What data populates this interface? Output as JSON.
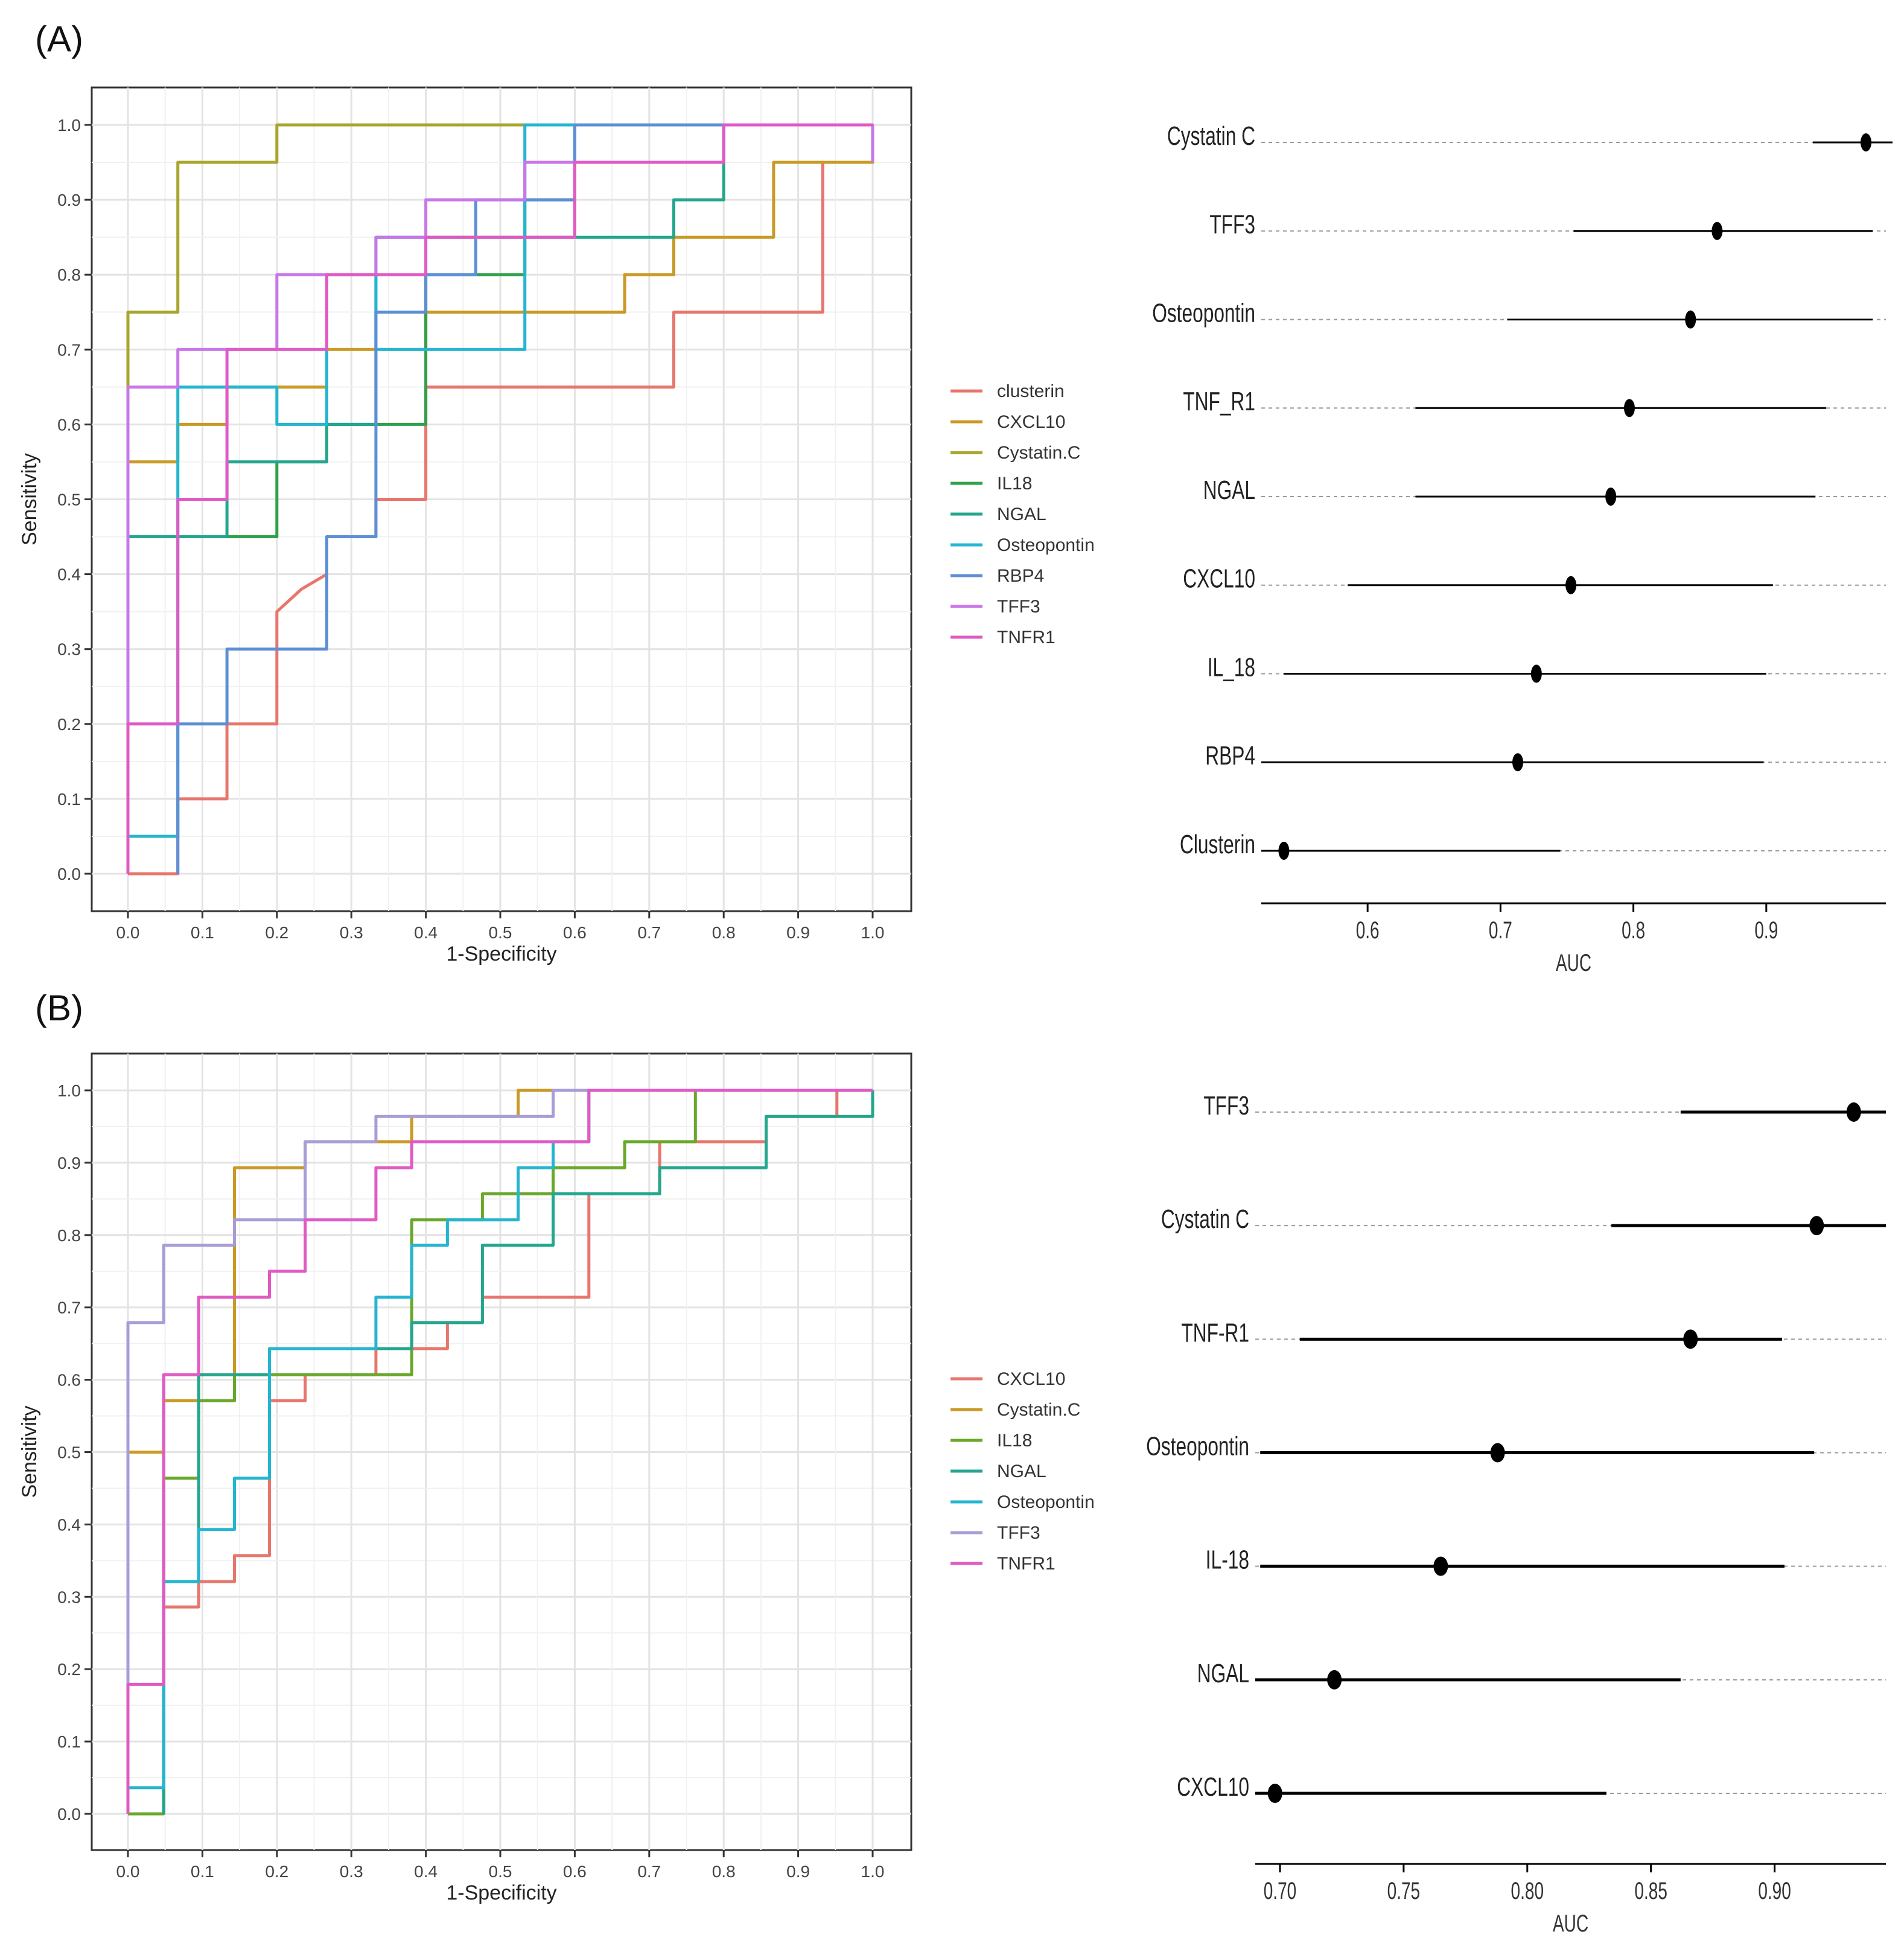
{
  "panels": [
    {
      "label": "(A)"
    },
    {
      "label": "(B)"
    }
  ],
  "chart_data": [
    {
      "type": "line",
      "panel": "(A)",
      "chart": "roc",
      "xlabel": "1-Specificity",
      "ylabel": "Sensitivity",
      "xlim": [
        0,
        1
      ],
      "ylim": [
        0,
        1
      ],
      "grid": true,
      "legend": "right",
      "ticks": [
        "0.0",
        "0.1",
        "0.2",
        "0.3",
        "0.4",
        "0.5",
        "0.6",
        "0.7",
        "0.8",
        "0.9",
        "1.0"
      ],
      "series": [
        {
          "name": "clusterin",
          "color": "#e7766d",
          "x": [
            0,
            0.067,
            0.067,
            0.133,
            0.133,
            0.2,
            0.2,
            0.233,
            0.267,
            0.267,
            0.333,
            0.333,
            0.4,
            0.4,
            0.733,
            0.733,
            0.933,
            0.933,
            1,
            1
          ],
          "y": [
            0,
            0,
            0.1,
            0.1,
            0.2,
            0.2,
            0.35,
            0.38,
            0.4,
            0.45,
            0.45,
            0.5,
            0.5,
            0.65,
            0.65,
            0.75,
            0.75,
            0.95,
            0.95,
            1
          ]
        },
        {
          "name": "CXCL10",
          "color": "#c99a25",
          "x": [
            0,
            0,
            0.067,
            0.067,
            0.133,
            0.133,
            0.267,
            0.267,
            0.4,
            0.4,
            0.667,
            0.667,
            0.733,
            0.733,
            0.867,
            0.867,
            1,
            1
          ],
          "y": [
            0,
            0.55,
            0.55,
            0.6,
            0.6,
            0.65,
            0.65,
            0.7,
            0.7,
            0.75,
            0.75,
            0.8,
            0.8,
            0.85,
            0.85,
            0.95,
            0.95,
            1
          ]
        },
        {
          "name": "Cystatin.C",
          "color": "#a8a62d",
          "x": [
            0,
            0,
            0.067,
            0.067,
            0.2,
            0.2,
            1
          ],
          "y": [
            0,
            0.75,
            0.75,
            0.95,
            0.95,
            1,
            1
          ]
        },
        {
          "name": "IL18",
          "color": "#31a04a",
          "x": [
            0,
            0,
            0.2,
            0.2,
            0.267,
            0.267,
            0.4,
            0.4,
            0.533,
            0.533,
            0.6,
            0.6,
            1
          ],
          "y": [
            0,
            0.45,
            0.45,
            0.55,
            0.55,
            0.6,
            0.6,
            0.8,
            0.8,
            0.9,
            0.9,
            1,
            1
          ]
        },
        {
          "name": "NGAL",
          "color": "#23a68d",
          "x": [
            0,
            0,
            0.133,
            0.133,
            0.267,
            0.267,
            0.333,
            0.333,
            0.533,
            0.533,
            0.733,
            0.733,
            0.8,
            0.8,
            0.867,
            0.867,
            1
          ],
          "y": [
            0,
            0.45,
            0.45,
            0.55,
            0.55,
            0.6,
            0.6,
            0.85,
            0.85,
            0.85,
            0.85,
            0.9,
            0.9,
            1,
            1,
            1,
            1
          ]
        },
        {
          "name": "Osteopontin",
          "color": "#25b5d0",
          "x": [
            0,
            0,
            0.067,
            0.067,
            0.2,
            0.2,
            0.267,
            0.267,
            0.333,
            0.333,
            0.533,
            0.533,
            1
          ],
          "y": [
            0,
            0.05,
            0.05,
            0.65,
            0.65,
            0.6,
            0.6,
            0.8,
            0.8,
            0.7,
            0.7,
            1,
            1
          ]
        },
        {
          "name": "RBP4",
          "color": "#5d8fd6",
          "x": [
            0.067,
            0.067,
            0.133,
            0.133,
            0.267,
            0.267,
            0.333,
            0.333,
            0.4,
            0.4,
            0.467,
            0.467,
            0.6,
            0.6,
            1,
            1
          ],
          "y": [
            0,
            0.2,
            0.2,
            0.3,
            0.3,
            0.45,
            0.45,
            0.75,
            0.75,
            0.8,
            0.8,
            0.9,
            0.9,
            1,
            1,
            1
          ]
        },
        {
          "name": "TFF3",
          "color": "#c877e8",
          "x": [
            0,
            0,
            0.067,
            0.067,
            0.133,
            0.133,
            0.2,
            0.2,
            0.333,
            0.333,
            0.4,
            0.4,
            0.533,
            0.533,
            0.733,
            0.733,
            0.8,
            0.8,
            1,
            1
          ],
          "y": [
            0,
            0.65,
            0.65,
            0.7,
            0.7,
            0.7,
            0.7,
            0.8,
            0.8,
            0.85,
            0.85,
            0.9,
            0.9,
            0.95,
            0.95,
            0.95,
            0.95,
            1,
            1,
            0.95
          ]
        },
        {
          "name": "TNFR1",
          "color": "#e05ac4",
          "x": [
            0,
            0,
            0.067,
            0.067,
            0.133,
            0.133,
            0.2,
            0.2,
            0.267,
            0.267,
            0.4,
            0.4,
            0.6,
            0.6,
            0.8,
            0.8,
            1
          ],
          "y": [
            0,
            0.2,
            0.2,
            0.5,
            0.5,
            0.7,
            0.7,
            0.7,
            0.7,
            0.8,
            0.8,
            0.85,
            0.85,
            0.95,
            0.95,
            1,
            1
          ]
        }
      ]
    },
    {
      "type": "scatter",
      "panel": "(A)",
      "chart": "forest",
      "xlabel": "AUC",
      "xlim": [
        0.52,
        0.99
      ],
      "ticks": [
        "0.6",
        "0.7",
        "0.8",
        "0.9"
      ],
      "tick_values": [
        0.6,
        0.7,
        0.8,
        0.9
      ],
      "rows": [
        {
          "label": "Cystatin C",
          "auc": 0.975,
          "lo": 0.935,
          "hi": 0.995
        },
        {
          "label": "TFF3",
          "auc": 0.863,
          "lo": 0.755,
          "hi": 0.98
        },
        {
          "label": "Osteopontin",
          "auc": 0.843,
          "lo": 0.705,
          "hi": 0.98
        },
        {
          "label": "TNF_R1",
          "auc": 0.797,
          "lo": 0.636,
          "hi": 0.945
        },
        {
          "label": "NGAL",
          "auc": 0.783,
          "lo": 0.636,
          "hi": 0.937
        },
        {
          "label": "CXCL10",
          "auc": 0.753,
          "lo": 0.585,
          "hi": 0.905
        },
        {
          "label": "IL_18",
          "auc": 0.727,
          "lo": 0.537,
          "hi": 0.9
        },
        {
          "label": "RBP4",
          "auc": 0.713,
          "lo": 0.52,
          "hi": 0.898
        },
        {
          "label": "Clusterin",
          "auc": 0.537,
          "lo": 0.52,
          "hi": 0.745
        }
      ]
    },
    {
      "type": "line",
      "panel": "(B)",
      "chart": "roc",
      "xlabel": "1-Specificity",
      "ylabel": "Sensitivity",
      "xlim": [
        0,
        1
      ],
      "ylim": [
        0,
        1
      ],
      "grid": true,
      "legend": "right",
      "ticks": [
        "0.0",
        "0.1",
        "0.2",
        "0.3",
        "0.4",
        "0.5",
        "0.6",
        "0.7",
        "0.8",
        "0.9",
        "1.0"
      ],
      "series": [
        {
          "name": "CXCL10",
          "color": "#e7766d",
          "x": [
            0.048,
            0.048,
            0.095,
            0.095,
            0.143,
            0.143,
            0.19,
            0.19,
            0.238,
            0.238,
            0.333,
            0.333,
            0.429,
            0.429,
            0.476,
            0.476,
            0.619,
            0.619,
            0.714,
            0.714,
            0.857,
            0.857,
            0.952,
            0.952,
            1
          ],
          "y": [
            0,
            0.286,
            0.286,
            0.321,
            0.321,
            0.357,
            0.357,
            0.571,
            0.571,
            0.607,
            0.607,
            0.643,
            0.643,
            0.679,
            0.679,
            0.714,
            0.714,
            0.857,
            0.857,
            0.929,
            0.929,
            0.964,
            0.964,
            1,
            1
          ]
        },
        {
          "name": "Cystatin.C",
          "color": "#c99a25",
          "x": [
            0,
            0,
            0.048,
            0.048,
            0.143,
            0.143,
            0.238,
            0.238,
            0.381,
            0.381,
            0.524,
            0.524,
            1
          ],
          "y": [
            0,
            0.5,
            0.5,
            0.571,
            0.571,
            0.893,
            0.893,
            0.929,
            0.929,
            0.964,
            0.964,
            1,
            1
          ]
        },
        {
          "name": "IL18",
          "color": "#69a82a",
          "x": [
            0,
            0.048,
            0.048,
            0.095,
            0.095,
            0.143,
            0.143,
            0.19,
            0.19,
            0.381,
            0.381,
            0.476,
            0.476,
            0.571,
            0.571,
            0.667,
            0.667,
            0.762,
            0.762,
            1
          ],
          "y": [
            0,
            0,
            0.464,
            0.464,
            0.571,
            0.571,
            0.607,
            0.607,
            0.607,
            0.607,
            0.821,
            0.821,
            0.857,
            0.857,
            0.893,
            0.893,
            0.929,
            0.929,
            1,
            1
          ]
        },
        {
          "name": "NGAL",
          "color": "#23a68d",
          "x": [
            0.048,
            0.048,
            0.095,
            0.095,
            0.19,
            0.19,
            0.333,
            0.333,
            0.381,
            0.381,
            0.476,
            0.476,
            0.571,
            0.571,
            0.714,
            0.714,
            0.857,
            0.857,
            1,
            1
          ],
          "y": [
            0,
            0.321,
            0.321,
            0.607,
            0.607,
            0.643,
            0.643,
            0.643,
            0.643,
            0.679,
            0.679,
            0.786,
            0.786,
            0.857,
            0.857,
            0.893,
            0.893,
            0.964,
            0.964,
            1
          ]
        },
        {
          "name": "Osteopontin",
          "color": "#25b5d0",
          "x": [
            0,
            0,
            0.048,
            0.048,
            0.095,
            0.095,
            0.143,
            0.143,
            0.19,
            0.19,
            0.333,
            0.333,
            0.381,
            0.381,
            0.429,
            0.429,
            0.524,
            0.524,
            0.571,
            0.571,
            0.619,
            0.619,
            1
          ],
          "y": [
            0,
            0.036,
            0.036,
            0.321,
            0.321,
            0.393,
            0.393,
            0.464,
            0.464,
            0.643,
            0.643,
            0.714,
            0.714,
            0.786,
            0.786,
            0.821,
            0.821,
            0.893,
            0.893,
            0.929,
            0.929,
            1,
            1
          ]
        },
        {
          "name": "TFF3",
          "color": "#a79dd8",
          "x": [
            0,
            0,
            0.048,
            0.048,
            0.143,
            0.143,
            0.238,
            0.238,
            0.333,
            0.333,
            0.571,
            0.571,
            1
          ],
          "y": [
            0,
            0.679,
            0.679,
            0.786,
            0.786,
            0.821,
            0.821,
            0.929,
            0.929,
            0.964,
            0.964,
            1,
            1
          ]
        },
        {
          "name": "TNFR1",
          "color": "#e05ac4",
          "x": [
            0,
            0,
            0.048,
            0.048,
            0.095,
            0.095,
            0.19,
            0.19,
            0.238,
            0.238,
            0.333,
            0.333,
            0.381,
            0.381,
            0.619,
            0.619,
            1
          ],
          "y": [
            0,
            0.179,
            0.179,
            0.607,
            0.607,
            0.714,
            0.714,
            0.75,
            0.75,
            0.821,
            0.821,
            0.893,
            0.893,
            0.929,
            0.929,
            1,
            1
          ]
        }
      ]
    },
    {
      "type": "scatter",
      "panel": "(B)",
      "chart": "forest",
      "xlabel": "AUC",
      "xlim": [
        0.69,
        0.945
      ],
      "ticks": [
        "0.70",
        "0.75",
        "0.80",
        "0.85",
        "0.90"
      ],
      "tick_values": [
        0.7,
        0.75,
        0.8,
        0.85,
        0.9
      ],
      "rows": [
        {
          "label": "TFF3",
          "auc": 0.932,
          "lo": 0.862,
          "hi": 0.945
        },
        {
          "label": "Cystatin C",
          "auc": 0.917,
          "lo": 0.834,
          "hi": 0.945
        },
        {
          "label": "TNF-R1",
          "auc": 0.866,
          "lo": 0.708,
          "hi": 0.903
        },
        {
          "label": "Osteopontin",
          "auc": 0.788,
          "lo": 0.692,
          "hi": 0.916
        },
        {
          "label": "IL-18",
          "auc": 0.765,
          "lo": 0.692,
          "hi": 0.904
        },
        {
          "label": "NGAL",
          "auc": 0.722,
          "lo": 0.69,
          "hi": 0.862
        },
        {
          "label": "CXCL10",
          "auc": 0.698,
          "lo": 0.69,
          "hi": 0.832
        }
      ]
    }
  ]
}
